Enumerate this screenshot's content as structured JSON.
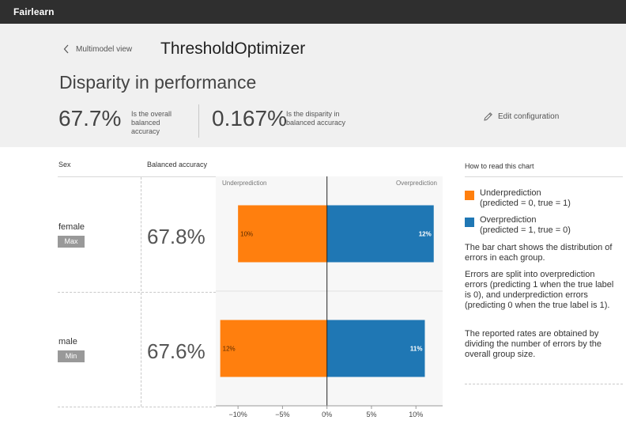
{
  "app": {
    "brand": "Fairlearn"
  },
  "header": {
    "back_label": "Multimodel view",
    "model_name": "ThresholdOptimizer",
    "page_title": "Disparity in performance",
    "overall_value": "67.7%",
    "overall_desc": "Is the overall balanced accuracy",
    "disparity_value": "0.167%",
    "disparity_desc": "Is the disparity in balanced accuracy",
    "edit_label": "Edit configuration"
  },
  "table": {
    "col_group": "Sex",
    "col_metric": "Balanced accuracy",
    "rows": [
      {
        "group": "female",
        "badge": "Max",
        "value": "67.8%"
      },
      {
        "group": "male",
        "badge": "Min",
        "value": "67.6%"
      }
    ]
  },
  "chart_data": {
    "type": "bar",
    "orientation": "horizontal",
    "categories": [
      "female",
      "male"
    ],
    "series": [
      {
        "name": "Underprediction",
        "values": [
          10,
          12
        ],
        "color": "#ff7f0e"
      },
      {
        "name": "Overprediction",
        "values": [
          12,
          11
        ],
        "color": "#1f77b4"
      }
    ],
    "region_labels": [
      "Underprediction",
      "Overprediction"
    ],
    "xlim": [
      -12.5,
      13
    ],
    "ticks": [
      -10,
      -5,
      0,
      5,
      10
    ],
    "tick_labels": [
      "−10%",
      "−5%",
      "0%",
      "5%",
      "10%"
    ],
    "bar_labels": [
      [
        "10%",
        "12%"
      ],
      [
        "12%",
        "11%"
      ]
    ]
  },
  "legend": {
    "title": "How to read this chart",
    "items": [
      {
        "label": "Underprediction",
        "desc": "(predicted = 0, true = 1)",
        "color": "#ff7f0e"
      },
      {
        "label": "Overprediction",
        "desc": "(predicted = 1, true = 0)",
        "color": "#1f77b4"
      }
    ],
    "explanations": [
      "The bar chart shows the distribution of errors in each group.",
      "Errors are split into overprediction errors (predicting 1 when the true label is 0), and underprediction errors (predicting 0 when the true label is 1).",
      "The reported rates are obtained by dividing the number of errors by the overall group size."
    ]
  },
  "icons": {
    "back": "chevron-left-icon",
    "edit": "pencil-icon"
  }
}
